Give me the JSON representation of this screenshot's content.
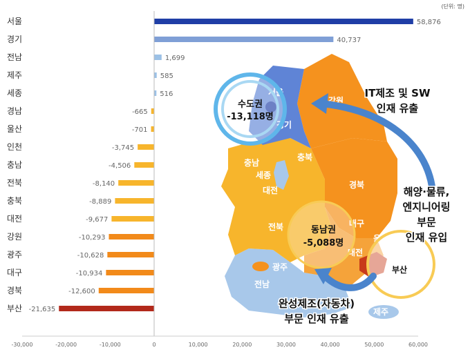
{
  "unit_label": "(단위: 명)",
  "chart_data": {
    "type": "bar",
    "orientation": "horizontal",
    "categories": [
      "서울",
      "경기",
      "전남",
      "제주",
      "세종",
      "경남",
      "울산",
      "인천",
      "충남",
      "전북",
      "충북",
      "대전",
      "강원",
      "광주",
      "대구",
      "경북",
      "부산"
    ],
    "values": [
      58876,
      40737,
      1699,
      585,
      516,
      -665,
      -701,
      -3745,
      -4506,
      -8140,
      -8889,
      -9677,
      -10293,
      -10628,
      -10934,
      -12600,
      -21635
    ],
    "value_labels": [
      "58,876",
      "40,737",
      "1,699",
      "585",
      "516",
      "-665",
      "-701",
      "-3,745",
      "-4,506",
      "-8,140",
      "-8,889",
      "-9,677",
      "-10,293",
      "-10,628",
      "-10,934",
      "-12,600",
      "-21,635"
    ],
    "bar_colors": [
      "#1f3ea6",
      "#7f9fd6",
      "#9cc1e6",
      "#9cc1e6",
      "#9cc1e6",
      "#f7b52c",
      "#f7b52c",
      "#f7b52c",
      "#f7b52c",
      "#f7b52c",
      "#f7b52c",
      "#f7b52c",
      "#f28a1a",
      "#f28a1a",
      "#f28a1a",
      "#f28a1a",
      "#b2291b"
    ],
    "xlim": [
      -30000,
      60000
    ],
    "xticks": [
      "-30,000",
      "-20,000",
      "-10,000",
      "0",
      "10,000",
      "20,000",
      "30,000",
      "40,000",
      "50,000",
      "60,000"
    ],
    "xtick_values": [
      -30000,
      -20000,
      -10000,
      0,
      10000,
      20000,
      30000,
      40000,
      50000,
      60000
    ],
    "grid": false
  },
  "map": {
    "region_labels": [
      "서울",
      "경기",
      "강원",
      "충남",
      "세종",
      "대전",
      "충북",
      "경북",
      "전북",
      "대구",
      "울산",
      "대전",
      "광주",
      "전남",
      "부산",
      "제주"
    ],
    "capital_title": "수도권",
    "capital_value": "-13,118명",
    "southeast_title": "동남권",
    "southeast_value": "-5,088명",
    "arrow_top_line1": "IT제조 및 SW",
    "arrow_top_line2": "인재 유출",
    "arrow_right_line1": "해양·물류,",
    "arrow_right_line2": "엔지니어링",
    "arrow_right_line3": "부문",
    "arrow_right_line4": "인재 유입",
    "arrow_bottom_line1": "완성제조(자동차)",
    "arrow_bottom_line2": "부문 인재 유출",
    "colors": {
      "blue_dark": "#3d63c9",
      "blue_light": "#a8c8ea",
      "orange": "#f5921e",
      "orange_light": "#f7b52c",
      "busan": "#c83a1a",
      "arrow": "#4a84cc"
    }
  }
}
